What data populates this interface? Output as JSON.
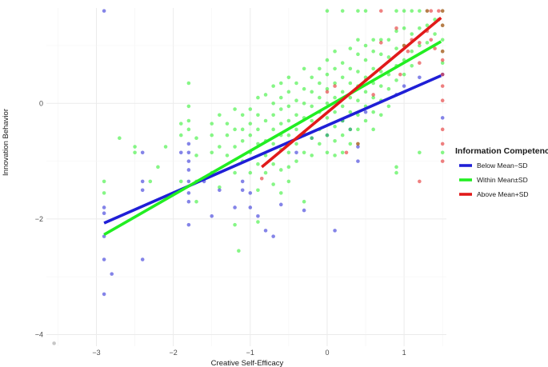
{
  "chart_data": {
    "type": "scatter",
    "xlabel": "Creative Self-Efficacy",
    "ylabel": "Innovation Behavior",
    "xlim": [
      -3.65,
      1.55
    ],
    "ylim": [
      -4.2,
      1.65
    ],
    "x_ticks": [
      -3,
      -2,
      -1,
      0,
      1
    ],
    "y_ticks": [
      -4,
      -2,
      0
    ],
    "x_tick_labels": [
      "−3",
      "−2",
      "−1",
      "0",
      "1"
    ],
    "y_tick_labels": [
      "−4",
      "−2",
      "0"
    ],
    "grid": true,
    "legend": {
      "title": "Information Competence",
      "placement": "right",
      "entries": [
        "Below Mean−SD",
        "Within Mean±SD",
        "Above Mean+SD"
      ]
    },
    "series": [
      {
        "name": "Below Mean−SD",
        "color": "#1f1fd6",
        "line": {
          "x": [
            -2.9,
            1.48
          ],
          "y": [
            -2.07,
            0.48
          ]
        },
        "points": [
          [
            -2.9,
            1.6
          ],
          [
            -2.9,
            -1.8
          ],
          [
            -2.9,
            -1.9
          ],
          [
            -2.9,
            -2.3
          ],
          [
            -2.9,
            -2.7
          ],
          [
            -2.9,
            -3.3
          ],
          [
            -2.8,
            -2.95
          ],
          [
            -2.4,
            -1.35
          ],
          [
            -2.4,
            -1.5
          ],
          [
            -2.4,
            -2.7
          ],
          [
            -2.4,
            -0.85
          ],
          [
            -1.9,
            -0.85
          ],
          [
            -1.8,
            -0.7
          ],
          [
            -1.8,
            -0.85
          ],
          [
            -1.8,
            -1.0
          ],
          [
            -1.8,
            -1.15
          ],
          [
            -1.8,
            -1.35
          ],
          [
            -1.8,
            -1.55
          ],
          [
            -1.8,
            -1.7
          ],
          [
            -1.8,
            -2.1
          ],
          [
            -1.6,
            -1.35
          ],
          [
            -1.5,
            -1.95
          ],
          [
            -1.4,
            -1.5
          ],
          [
            -1.2,
            -1.8
          ],
          [
            -1.1,
            -1.35
          ],
          [
            -1.1,
            -1.5
          ],
          [
            -1.0,
            -1.55
          ],
          [
            -1.0,
            -1.8
          ],
          [
            -0.9,
            -1.95
          ],
          [
            -0.8,
            -2.2
          ],
          [
            -0.7,
            -2.3
          ],
          [
            -0.6,
            -1.75
          ],
          [
            -0.3,
            -1.85
          ],
          [
            0.1,
            -2.2
          ],
          [
            -0.5,
            -0.7
          ],
          [
            -0.4,
            -0.85
          ],
          [
            -0.2,
            -0.6
          ],
          [
            0.0,
            -0.55
          ],
          [
            0.2,
            -0.3
          ],
          [
            0.3,
            -0.45
          ],
          [
            0.4,
            -0.75
          ],
          [
            0.4,
            -1.0
          ],
          [
            0.5,
            -0.15
          ],
          [
            0.9,
            0.15
          ],
          [
            1.0,
            0.3
          ],
          [
            1.2,
            0.45
          ],
          [
            1.5,
            -0.25
          ],
          [
            1.5,
            0.5
          ]
        ]
      },
      {
        "name": "Within Mean±SD",
        "color": "#22ee22",
        "line": {
          "x": [
            -2.9,
            1.48
          ],
          "y": [
            -2.27,
            1.07
          ]
        },
        "points": [
          [
            -2.9,
            -1.35
          ],
          [
            -2.9,
            -1.55
          ],
          [
            -2.7,
            -0.6
          ],
          [
            -2.5,
            -0.75
          ],
          [
            -2.5,
            -0.85
          ],
          [
            -2.3,
            -1.35
          ],
          [
            -2.2,
            -1.1
          ],
          [
            -2.1,
            -0.75
          ],
          [
            -1.9,
            -1.35
          ],
          [
            -1.8,
            0.35
          ],
          [
            -1.9,
            -0.35
          ],
          [
            -1.9,
            -0.55
          ],
          [
            -1.8,
            -0.3
          ],
          [
            -1.8,
            -0.45
          ],
          [
            -1.7,
            -0.6
          ],
          [
            -1.7,
            -0.9
          ],
          [
            -1.7,
            -1.35
          ],
          [
            -1.7,
            -1.7
          ],
          [
            -1.5,
            -0.35
          ],
          [
            -1.5,
            -0.55
          ],
          [
            -1.5,
            -0.85
          ],
          [
            -1.5,
            -1.2
          ],
          [
            -1.4,
            -1.45
          ],
          [
            -1.4,
            -0.2
          ],
          [
            -1.4,
            -0.75
          ],
          [
            -1.3,
            -0.35
          ],
          [
            -1.3,
            -0.55
          ],
          [
            -1.3,
            -0.9
          ],
          [
            -1.2,
            -0.1
          ],
          [
            -1.2,
            -0.45
          ],
          [
            -1.2,
            -0.75
          ],
          [
            -1.2,
            -1.2
          ],
          [
            -1.1,
            -0.2
          ],
          [
            -1.1,
            -0.45
          ],
          [
            -1.1,
            -0.65
          ],
          [
            -1.1,
            -1.0
          ],
          [
            -1.0,
            -0.1
          ],
          [
            -1.0,
            -0.35
          ],
          [
            -1.0,
            -0.55
          ],
          [
            -1.0,
            -0.85
          ],
          [
            -1.0,
            -1.2
          ],
          [
            -0.9,
            0.1
          ],
          [
            -0.9,
            -0.2
          ],
          [
            -0.9,
            -0.45
          ],
          [
            -0.9,
            -0.7
          ],
          [
            -0.9,
            -1.05
          ],
          [
            -0.9,
            -1.5
          ],
          [
            -0.8,
            0.15
          ],
          [
            -0.8,
            -0.3
          ],
          [
            -0.8,
            -0.65
          ],
          [
            -0.8,
            -0.9
          ],
          [
            -0.8,
            -1.2
          ],
          [
            -0.7,
            0.3
          ],
          [
            -0.7,
            0.0
          ],
          [
            -0.7,
            -0.2
          ],
          [
            -0.7,
            -0.45
          ],
          [
            -0.7,
            -0.7
          ],
          [
            -0.7,
            -1.05
          ],
          [
            -0.7,
            -1.4
          ],
          [
            -0.6,
            0.35
          ],
          [
            -0.6,
            0.1
          ],
          [
            -0.6,
            -0.1
          ],
          [
            -0.6,
            -0.35
          ],
          [
            -0.6,
            -0.55
          ],
          [
            -0.6,
            -0.8
          ],
          [
            -0.6,
            -1.15
          ],
          [
            -0.6,
            -1.55
          ],
          [
            -0.5,
            0.45
          ],
          [
            -0.5,
            0.2
          ],
          [
            -0.5,
            -0.05
          ],
          [
            -0.5,
            -0.3
          ],
          [
            -0.5,
            -0.55
          ],
          [
            -0.5,
            -0.85
          ],
          [
            -0.5,
            -1.1
          ],
          [
            -0.5,
            -1.35
          ],
          [
            -0.4,
            0.35
          ],
          [
            -0.4,
            0.05
          ],
          [
            -0.4,
            -0.2
          ],
          [
            -0.4,
            -0.45
          ],
          [
            -0.4,
            -0.7
          ],
          [
            -0.4,
            -1.0
          ],
          [
            -0.3,
            0.6
          ],
          [
            -0.3,
            0.25
          ],
          [
            -0.3,
            0.0
          ],
          [
            -0.3,
            -0.25
          ],
          [
            -0.3,
            -0.55
          ],
          [
            -0.3,
            -0.85
          ],
          [
            -0.3,
            -1.7
          ],
          [
            -0.2,
            0.45
          ],
          [
            -0.2,
            0.2
          ],
          [
            -0.2,
            -0.05
          ],
          [
            -0.2,
            -0.3
          ],
          [
            -0.2,
            -0.6
          ],
          [
            -0.2,
            -0.9
          ],
          [
            -0.1,
            0.6
          ],
          [
            -0.1,
            0.35
          ],
          [
            -0.1,
            0.1
          ],
          [
            -0.1,
            -0.15
          ],
          [
            -0.1,
            -0.45
          ],
          [
            -0.1,
            -0.7
          ],
          [
            0.0,
            1.6
          ],
          [
            0.0,
            0.75
          ],
          [
            0.0,
            0.5
          ],
          [
            0.0,
            0.25
          ],
          [
            0.0,
            0.0
          ],
          [
            0.0,
            -0.25
          ],
          [
            0.0,
            -0.55
          ],
          [
            0.0,
            -0.85
          ],
          [
            0.1,
            0.9
          ],
          [
            0.1,
            0.6
          ],
          [
            0.1,
            0.35
          ],
          [
            0.1,
            0.1
          ],
          [
            0.1,
            -0.15
          ],
          [
            0.1,
            -0.4
          ],
          [
            0.1,
            -0.65
          ],
          [
            0.1,
            -0.9
          ],
          [
            0.2,
            1.6
          ],
          [
            0.2,
            0.7
          ],
          [
            0.2,
            0.45
          ],
          [
            0.2,
            0.2
          ],
          [
            0.2,
            -0.05
          ],
          [
            0.2,
            -0.3
          ],
          [
            0.2,
            -0.55
          ],
          [
            0.2,
            -0.85
          ],
          [
            0.3,
            0.95
          ],
          [
            0.3,
            0.6
          ],
          [
            0.3,
            0.35
          ],
          [
            0.3,
            0.1
          ],
          [
            0.3,
            -0.15
          ],
          [
            0.3,
            -0.45
          ],
          [
            0.3,
            -0.7
          ],
          [
            0.4,
            1.6
          ],
          [
            0.4,
            1.1
          ],
          [
            0.4,
            0.85
          ],
          [
            0.4,
            0.55
          ],
          [
            0.4,
            0.3
          ],
          [
            0.4,
            0.05
          ],
          [
            0.4,
            -0.2
          ],
          [
            0.4,
            -0.45
          ],
          [
            0.4,
            -0.7
          ],
          [
            0.5,
            1.6
          ],
          [
            0.5,
            1.0
          ],
          [
            0.5,
            0.75
          ],
          [
            0.5,
            0.45
          ],
          [
            0.5,
            0.2
          ],
          [
            0.5,
            -0.05
          ],
          [
            0.5,
            -0.3
          ],
          [
            0.6,
            1.1
          ],
          [
            0.6,
            0.9
          ],
          [
            0.6,
            0.6
          ],
          [
            0.6,
            0.35
          ],
          [
            0.6,
            0.1
          ],
          [
            0.6,
            -0.15
          ],
          [
            0.6,
            -0.45
          ],
          [
            0.7,
            1.1
          ],
          [
            0.7,
            0.85
          ],
          [
            0.7,
            0.55
          ],
          [
            0.7,
            0.3
          ],
          [
            0.7,
            0.05
          ],
          [
            0.7,
            -0.2
          ],
          [
            0.8,
            1.1
          ],
          [
            0.8,
            0.8
          ],
          [
            0.8,
            0.5
          ],
          [
            0.8,
            0.25
          ],
          [
            0.8,
            -0.05
          ],
          [
            0.9,
            1.6
          ],
          [
            0.9,
            1.25
          ],
          [
            0.9,
            0.95
          ],
          [
            0.9,
            0.65
          ],
          [
            0.9,
            0.4
          ],
          [
            0.9,
            -1.1
          ],
          [
            0.9,
            -1.2
          ],
          [
            1.0,
            1.6
          ],
          [
            1.0,
            1.3
          ],
          [
            1.0,
            1.0
          ],
          [
            1.0,
            0.75
          ],
          [
            1.0,
            0.5
          ],
          [
            1.1,
            1.6
          ],
          [
            1.1,
            1.2
          ],
          [
            1.1,
            0.9
          ],
          [
            1.1,
            0.65
          ],
          [
            1.2,
            1.6
          ],
          [
            1.2,
            1.3
          ],
          [
            1.2,
            1.0
          ],
          [
            1.2,
            -0.85
          ],
          [
            1.3,
            1.6
          ],
          [
            1.3,
            1.35
          ],
          [
            1.3,
            1.05
          ],
          [
            1.4,
            1.45
          ],
          [
            1.4,
            1.2
          ],
          [
            1.5,
            1.6
          ],
          [
            1.5,
            1.35
          ],
          [
            1.5,
            1.1
          ],
          [
            1.5,
            0.9
          ],
          [
            1.5,
            0.7
          ],
          [
            1.5,
            -0.85
          ],
          [
            -1.2,
            -2.1
          ],
          [
            -1.15,
            -2.55
          ],
          [
            -0.9,
            -2.05
          ],
          [
            -1.8,
            -0.05
          ]
        ]
      },
      {
        "name": "Above Mean+SD",
        "color": "#e11a1a",
        "line": {
          "x": [
            -0.85,
            1.48
          ],
          "y": [
            -1.1,
            1.48
          ]
        },
        "points": [
          [
            -0.85,
            -1.3
          ],
          [
            -0.3,
            -0.5
          ],
          [
            0.0,
            0.2
          ],
          [
            0.1,
            0.3
          ],
          [
            0.25,
            -0.85
          ],
          [
            0.4,
            -0.7
          ],
          [
            0.5,
            0.4
          ],
          [
            0.6,
            0.15
          ],
          [
            0.7,
            1.6
          ],
          [
            0.7,
            1.05
          ],
          [
            0.9,
            1.3
          ],
          [
            0.95,
            0.5
          ],
          [
            1.0,
            1.0
          ],
          [
            1.05,
            0.9
          ],
          [
            1.1,
            1.1
          ],
          [
            1.2,
            1.05
          ],
          [
            1.2,
            0.7
          ],
          [
            1.2,
            -1.35
          ],
          [
            1.3,
            1.6
          ],
          [
            1.3,
            1.25
          ],
          [
            1.35,
            1.6
          ],
          [
            1.35,
            1.1
          ],
          [
            1.4,
            0.95
          ],
          [
            1.45,
            1.6
          ],
          [
            1.45,
            1.45
          ],
          [
            1.5,
            1.6
          ],
          [
            1.5,
            1.35
          ],
          [
            1.5,
            0.9
          ],
          [
            1.5,
            0.75
          ],
          [
            1.5,
            0.5
          ],
          [
            1.5,
            0.3
          ],
          [
            1.5,
            0.05
          ],
          [
            1.5,
            -0.45
          ],
          [
            1.5,
            -0.7
          ],
          [
            1.5,
            -1.0
          ]
        ]
      },
      {
        "name": "",
        "color": "#999999",
        "points": [
          [
            -3.55,
            -4.15
          ]
        ]
      }
    ]
  }
}
